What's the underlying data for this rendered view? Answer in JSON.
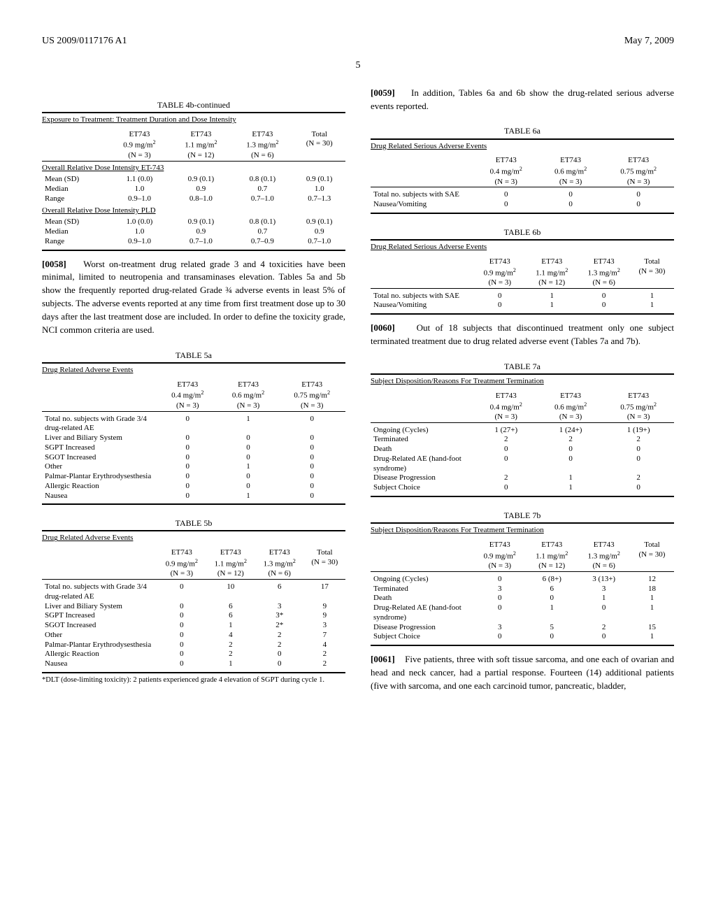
{
  "header": {
    "docket": "US 2009/0117176 A1",
    "date": "May 7, 2009",
    "page": "5"
  },
  "table4b": {
    "caption": "TABLE 4b-continued",
    "subtitle": "Exposure to Treatment: Treatment Duration and Dose Intensity",
    "cols": [
      "ET743\n0.9 mg/m²\n(N = 3)",
      "ET743\n1.1 mg/m²\n(N = 12)",
      "ET743\n1.3 mg/m²\n(N = 6)",
      "Total\n(N = 30)"
    ],
    "section1": "Overall Relative Dose Intensity ET-743",
    "rows1": [
      [
        "Mean (SD)",
        "1.1 (0.0)",
        "0.9 (0.1)",
        "0.8 (0.1)",
        "0.9 (0.1)"
      ],
      [
        "Median",
        "1.0",
        "0.9",
        "0.7",
        "1.0"
      ],
      [
        "Range",
        "0.9–1.0",
        "0.8–1.0",
        "0.7–1.0",
        "0.7–1.3"
      ]
    ],
    "section2": "Overall Relative Dose Intensity PLD",
    "rows2": [
      [
        "Mean (SD)",
        "1.0 (0.0)",
        "0.9 (0.1)",
        "0.8 (0.1)",
        "0.9 (0.1)"
      ],
      [
        "Median",
        "1.0",
        "0.9",
        "0.7",
        "0.9"
      ],
      [
        "Range",
        "0.9–1.0",
        "0.7–1.0",
        "0.7–0.9",
        "0.7–1.0"
      ]
    ]
  },
  "para58": {
    "num": "[0058]",
    "text": "Worst on-treatment drug related grade 3 and 4 toxicities have been minimal, limited to neutropenia and transaminases elevation. Tables 5a and 5b show the frequently reported drug-related Grade ¾ adverse events in least 5% of subjects. The adverse events reported at any time from first treatment dose up to 30 days after the last treatment dose are included. In order to define the toxicity grade, NCI common criteria are used."
  },
  "table5a": {
    "caption": "TABLE 5a",
    "subtitle": "Drug Related Adverse Events",
    "cols": [
      "ET743\n0.4 mg/m²\n(N = 3)",
      "ET743\n0.6 mg/m²\n(N = 3)",
      "ET743\n0.75 mg/m²\n(N = 3)"
    ],
    "rows": [
      [
        "Total no. subjects with Grade 3/4 drug-related AE",
        "0",
        "1",
        "0"
      ],
      [
        "Liver and Biliary System",
        "0",
        "0",
        "0"
      ],
      [
        "SGPT Increased",
        "0",
        "0",
        "0"
      ],
      [
        "SGOT Increased",
        "0",
        "0",
        "0"
      ],
      [
        "Other",
        "0",
        "1",
        "0"
      ],
      [
        "Palmar-Plantar Erythrodysesthesia",
        "0",
        "0",
        "0"
      ],
      [
        "Allergic Reaction",
        "0",
        "0",
        "0"
      ],
      [
        "Nausea",
        "0",
        "1",
        "0"
      ]
    ]
  },
  "table5b": {
    "caption": "TABLE 5b",
    "subtitle": "Drug Related Adverse Events",
    "cols": [
      "ET743\n0.9 mg/m²\n(N = 3)",
      "ET743\n1.1 mg/m²\n(N = 12)",
      "ET743\n1.3 mg/m²\n(N = 6)",
      "Total\n(N = 30)"
    ],
    "rows": [
      [
        "Total no. subjects with Grade 3/4 drug-related AE",
        "0",
        "10",
        "6",
        "17"
      ],
      [
        "Liver and Biliary System",
        "0",
        "6",
        "3",
        "9"
      ],
      [
        "SGPT Increased",
        "0",
        "6",
        "3*",
        "9"
      ],
      [
        "SGOT Increased",
        "0",
        "1",
        "2*",
        "3"
      ],
      [
        "Other",
        "0",
        "4",
        "2",
        "7"
      ],
      [
        "Palmar-Plantar Erythrodysesthesia",
        "0",
        "2",
        "2",
        "4"
      ],
      [
        "Allergic Reaction",
        "0",
        "2",
        "0",
        "2"
      ],
      [
        "Nausea",
        "0",
        "1",
        "0",
        "2"
      ]
    ],
    "footnote": "*DLT (dose-limiting toxicity): 2 patients experienced grade 4 elevation of SGPT during cycle 1."
  },
  "para59": {
    "num": "[0059]",
    "text": "In addition, Tables 6a and 6b show the drug-related serious adverse events reported."
  },
  "table6a": {
    "caption": "TABLE 6a",
    "subtitle": "Drug Related Serious Adverse Events",
    "cols": [
      "ET743\n0.4 mg/m²\n(N = 3)",
      "ET743\n0.6 mg/m²\n(N = 3)",
      "ET743\n0.75 mg/m²\n(N = 3)"
    ],
    "rows": [
      [
        "Total no. subjects with SAE",
        "0",
        "0",
        "0"
      ],
      [
        "Nausea/Vomiting",
        "0",
        "0",
        "0"
      ]
    ]
  },
  "table6b": {
    "caption": "TABLE 6b",
    "subtitle": "Drug Related Serious Adverse Events",
    "cols": [
      "ET743\n0.9 mg/m²\n(N = 3)",
      "ET743\n1.1 mg/m²\n(N = 12)",
      "ET743\n1.3 mg/m²\n(N = 6)",
      "Total\n(N = 30)"
    ],
    "rows": [
      [
        "Total no. subjects with SAE",
        "0",
        "1",
        "0",
        "1"
      ],
      [
        "Nausea/Vomiting",
        "0",
        "1",
        "0",
        "1"
      ]
    ]
  },
  "para60": {
    "num": "[0060]",
    "text": "Out of 18 subjects that discontinued treatment only one subject terminated treatment due to drug related adverse event (Tables 7a and 7b)."
  },
  "table7a": {
    "caption": "TABLE 7a",
    "subtitle": "Subject Disposition/Reasons For Treatment Termination",
    "cols": [
      "ET743\n0.4 mg/m²\n(N = 3)",
      "ET743\n0.6 mg/m²\n(N = 3)",
      "ET743\n0.75 mg/m²\n(N = 3)"
    ],
    "rows": [
      [
        "Ongoing (Cycles)",
        "1 (27+)",
        "1 (24+)",
        "1 (19+)"
      ],
      [
        "Terminated",
        "2",
        "2",
        "2"
      ],
      [
        "Death",
        "0",
        "0",
        "0"
      ],
      [
        "Drug-Related AE (hand-foot syndrome)",
        "0",
        "0",
        "0"
      ],
      [
        "Disease Progression",
        "2",
        "1",
        "2"
      ],
      [
        "Subject Choice",
        "0",
        "1",
        "0"
      ]
    ]
  },
  "table7b": {
    "caption": "TABLE 7b",
    "subtitle": "Subject Disposition/Reasons For Treatment Termination",
    "cols": [
      "ET743\n0.9 mg/m²\n(N = 3)",
      "ET743\n1.1 mg/m²\n(N = 12)",
      "ET743\n1.3 mg/m²\n(N = 6)",
      "Total\n(N = 30)"
    ],
    "rows": [
      [
        "Ongoing (Cycles)",
        "0",
        "6 (8+)",
        "3 (13+)",
        "12"
      ],
      [
        "Terminated",
        "3",
        "6",
        "3",
        "18"
      ],
      [
        "Death",
        "0",
        "0",
        "1",
        "1"
      ],
      [
        "Drug-Related AE (hand-foot syndrome)",
        "0",
        "1",
        "0",
        "1"
      ],
      [
        "Disease Progression",
        "3",
        "5",
        "2",
        "15"
      ],
      [
        "Subject Choice",
        "0",
        "0",
        "0",
        "1"
      ]
    ]
  },
  "para61": {
    "num": "[0061]",
    "text": "Five patients, three with soft tissue sarcoma, and one each of ovarian and head and neck cancer, had a partial response. Fourteen (14) additional patients (five with sarcoma, and one each carcinoid tumor, pancreatic, bladder,"
  }
}
